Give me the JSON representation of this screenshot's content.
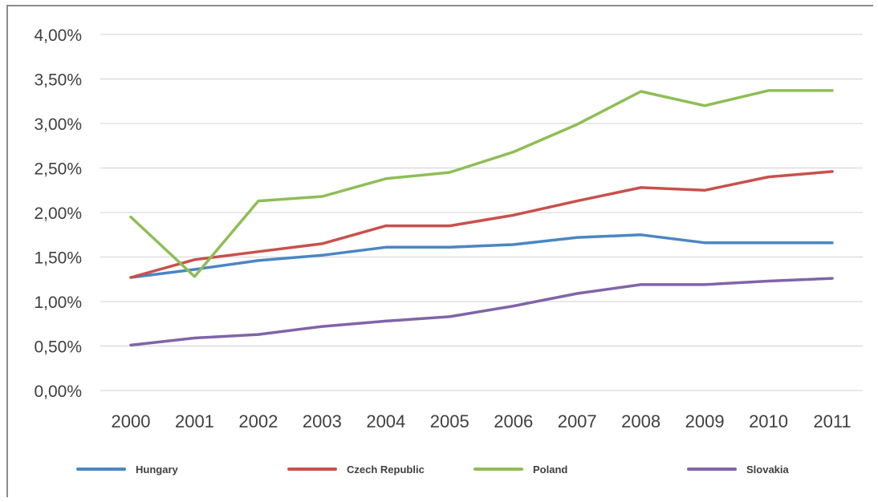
{
  "chart_data": {
    "type": "line",
    "title": "",
    "xlabel": "",
    "ylabel": "",
    "categories": [
      "2000",
      "2001",
      "2002",
      "2003",
      "2004",
      "2005",
      "2006",
      "2007",
      "2008",
      "2009",
      "2010",
      "2011"
    ],
    "y_ticks": [
      "0,00%",
      "0,50%",
      "1,00%",
      "1,50%",
      "2,00%",
      "2,50%",
      "3,00%",
      "3,50%",
      "4,00%"
    ],
    "ylim": [
      0,
      4.0
    ],
    "y_unit": "%",
    "grid": true,
    "legend_position": "bottom",
    "series": [
      {
        "name": "Hungary",
        "color": "#4a86c5",
        "values": [
          1.27,
          1.36,
          1.46,
          1.52,
          1.61,
          1.61,
          1.64,
          1.72,
          1.75,
          1.66,
          1.66,
          1.66
        ]
      },
      {
        "name": "Czech Republic",
        "color": "#c9504c",
        "values": [
          1.27,
          1.47,
          1.56,
          1.65,
          1.85,
          1.85,
          1.97,
          2.13,
          2.28,
          2.25,
          2.4,
          2.46
        ]
      },
      {
        "name": "Poland",
        "color": "#8ebe55",
        "values": [
          1.95,
          1.28,
          2.13,
          2.18,
          2.38,
          2.45,
          2.68,
          2.99,
          3.36,
          3.2,
          3.37,
          3.37
        ]
      },
      {
        "name": "Slovakia",
        "color": "#8064a8",
        "values": [
          0.51,
          0.59,
          0.63,
          0.72,
          0.78,
          0.83,
          0.95,
          1.09,
          1.19,
          1.19,
          1.23,
          1.26
        ]
      }
    ]
  }
}
